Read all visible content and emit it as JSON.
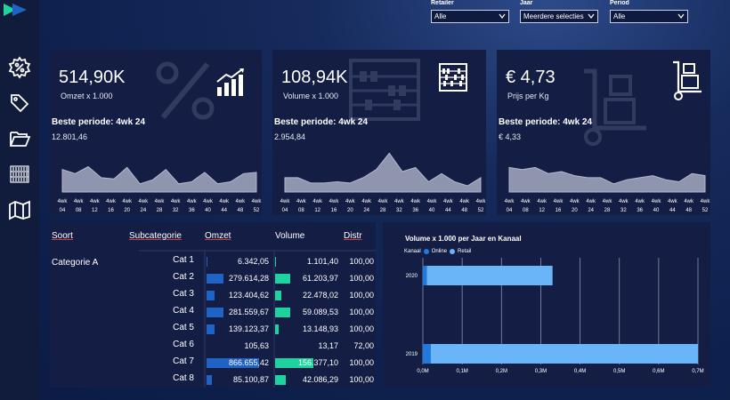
{
  "filters": [
    {
      "label": "Retailer",
      "value": "Alle"
    },
    {
      "label": "Jaar",
      "value": "Meerdere selecties"
    },
    {
      "label": "Period",
      "value": "Alle"
    }
  ],
  "sidebar_icons": [
    "settings-gear-percent-icon",
    "price-tag-icon",
    "open-folder-icon",
    "barcode-shelf-icon",
    "map-icon"
  ],
  "kpis": [
    {
      "value": "514,90K",
      "sub": "Omzet x 1.000",
      "period_label": "Beste periode: 4wk 24",
      "period_value": "12.801,46",
      "icon": "growth-chart-icon",
      "spark": [
        0.55,
        0.45,
        0.62,
        0.35,
        0.32,
        0.6,
        0.2,
        0.3,
        0.55,
        0.2,
        0.25,
        0.48,
        0.2,
        0.25,
        0.45,
        0.48
      ]
    },
    {
      "value": "108,94K",
      "sub": "Volume x 1.000",
      "period_label": "Beste periode: 4wk 24",
      "period_value": "2.954,84",
      "icon": "abacus-icon",
      "spark": [
        0.35,
        0.35,
        0.22,
        0.22,
        0.25,
        0.22,
        0.35,
        0.55,
        0.95,
        0.5,
        0.6,
        0.25,
        0.45,
        0.25,
        0.15,
        0.35
      ]
    },
    {
      "value": "€ 4,73",
      "sub": "Prijs per Kg",
      "period_label": "Beste periode: 4wk 24",
      "period_value": "€ 4,33",
      "icon": "hand-truck-icon",
      "spark": [
        0.6,
        0.55,
        0.6,
        0.45,
        0.5,
        0.4,
        0.35,
        0.35,
        0.2,
        0.3,
        0.35,
        0.4,
        0.3,
        0.25,
        0.45,
        0.4
      ]
    }
  ],
  "spark_ticks_top": [
    "4wk",
    "4wk",
    "4wk",
    "4wk",
    "4wk",
    "4wk",
    "4wk",
    "4wk",
    "4wk",
    "4wk",
    "4wk",
    "4wk",
    "4wk"
  ],
  "spark_ticks_bottom": [
    "04",
    "08",
    "12",
    "16",
    "20",
    "24",
    "28",
    "32",
    "36",
    "40",
    "44",
    "48",
    "52"
  ],
  "table": {
    "headers": {
      "soort": "Soort",
      "subcategorie": "Subcategorie",
      "omzet": "Omzet",
      "volume": "Volume",
      "distr": "Distr"
    },
    "category": "Categorie A",
    "rows": [
      {
        "sub": "Cat 1",
        "omzet": "6.342,05",
        "volume": "1.101,40",
        "distr": "100,00",
        "omzet_frac": 0.01,
        "vol_frac": 0.01
      },
      {
        "sub": "Cat 2",
        "omzet": "279.614,28",
        "volume": "61.203,97",
        "distr": "100,00",
        "omzet_frac": 0.26,
        "vol_frac": 0.24
      },
      {
        "sub": "Cat 3",
        "omzet": "123.404,62",
        "volume": "22.478,02",
        "distr": "100,00",
        "omzet_frac": 0.12,
        "vol_frac": 0.09
      },
      {
        "sub": "Cat 4",
        "omzet": "281.559,67",
        "volume": "59.089,53",
        "distr": "100,00",
        "omzet_frac": 0.26,
        "vol_frac": 0.23
      },
      {
        "sub": "Cat 5",
        "omzet": "139.123,37",
        "volume": "13.148,93",
        "distr": "100,00",
        "omzet_frac": 0.13,
        "vol_frac": 0.05
      },
      {
        "sub": "Cat 6",
        "omzet": "105,63",
        "volume": "13,17",
        "distr": "72,00",
        "omzet_frac": 0.0,
        "vol_frac": 0.0
      },
      {
        "sub": "Cat 7",
        "omzet": "866.655,42",
        "volume": "156.377,10",
        "distr": "100,00",
        "omzet_frac": 0.82,
        "vol_frac": 0.6
      },
      {
        "sub": "Cat 8",
        "omzet": "85.100,87",
        "volume": "42.086,29",
        "distr": "100,00",
        "omzet_frac": 0.08,
        "vol_frac": 0.16
      }
    ]
  },
  "chart_data": {
    "type": "bar",
    "orientation": "horizontal",
    "stacked": true,
    "title": "Volume x 1.000 per Jaar en Kanaal",
    "legend_title": "Kanaal",
    "legend_position": "top-left",
    "categories": [
      "2020",
      "2019"
    ],
    "series": [
      {
        "name": "Online",
        "color": "#1f7ae0",
        "values": [
          0.01,
          0.02
        ]
      },
      {
        "name": "Retail",
        "color": "#6ab4f8",
        "values": [
          0.32,
          0.68
        ]
      }
    ],
    "xticks": [
      "0,0M",
      "0,1M",
      "0,2M",
      "0,3M",
      "0,4M",
      "0,5M",
      "0,6M",
      "0,7M"
    ],
    "xlim": [
      0,
      0.7
    ],
    "grid": true
  }
}
